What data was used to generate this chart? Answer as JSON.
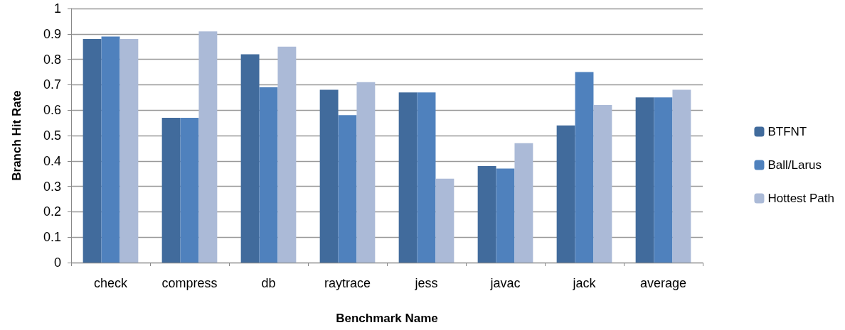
{
  "chart_data": {
    "type": "bar",
    "xlabel": "Benchmark Name",
    "ylabel": "Branch Hit Rate",
    "categories": [
      "check",
      "compress",
      "db",
      "raytrace",
      "jess",
      "javac",
      "jack",
      "average"
    ],
    "series": [
      {
        "name": "BTFNT",
        "color": "#416b9c",
        "values": [
          0.88,
          0.57,
          0.82,
          0.68,
          0.67,
          0.38,
          0.54,
          0.65
        ]
      },
      {
        "name": "Ball/Larus",
        "color": "#4f81bd",
        "values": [
          0.89,
          0.57,
          0.69,
          0.58,
          0.67,
          0.37,
          0.75,
          0.65
        ]
      },
      {
        "name": "Hottest Path",
        "color": "#abbad7",
        "values": [
          0.88,
          0.91,
          0.85,
          0.71,
          0.33,
          0.47,
          0.62,
          0.68
        ]
      }
    ],
    "ylim": [
      0,
      1
    ],
    "yticks": [
      0,
      0.1,
      0.2,
      0.3,
      0.4,
      0.5,
      0.6,
      0.7,
      0.8,
      0.9,
      1
    ],
    "grid": "y",
    "legend": "right"
  }
}
